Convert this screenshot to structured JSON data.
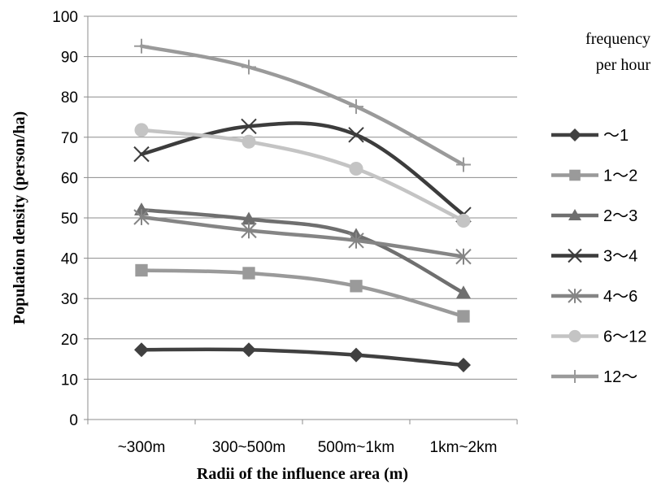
{
  "chart_data": {
    "type": "line",
    "title": "",
    "xlabel": "Radii of the influence area (m)",
    "ylabel": "Population density (person/ha)",
    "ylim": [
      0,
      100
    ],
    "yticks": [
      0,
      10,
      20,
      30,
      40,
      50,
      60,
      70,
      80,
      90,
      100
    ],
    "categories": [
      "~300m",
      "300~500m",
      "500m~1km",
      "1km~2km"
    ],
    "grid": "horizontal",
    "legend": {
      "title_lines": [
        "frequency",
        "per hour"
      ],
      "placement": "right"
    },
    "series": [
      {
        "name": "～1",
        "values": [
          17.3,
          17.3,
          16.0,
          13.5
        ],
        "marker": "diamond",
        "color": "#404040"
      },
      {
        "name": "1～2",
        "values": [
          37.0,
          36.3,
          33.1,
          25.6
        ],
        "marker": "square",
        "color": "#9a9a9a"
      },
      {
        "name": "2～3",
        "values": [
          52.0,
          49.7,
          45.7,
          31.4
        ],
        "marker": "triangle",
        "color": "#6f6f6f"
      },
      {
        "name": "3～4",
        "values": [
          65.8,
          72.7,
          70.6,
          50.8
        ],
        "marker": "x",
        "color": "#3c3c3c"
      },
      {
        "name": "4～6",
        "values": [
          50.2,
          46.9,
          44.4,
          40.4
        ],
        "marker": "asterisk",
        "color": "#858585"
      },
      {
        "name": "6～12",
        "values": [
          71.8,
          68.9,
          62.2,
          49.3
        ],
        "marker": "circle",
        "color": "#c4c4c4"
      },
      {
        "name": "12～",
        "values": [
          92.6,
          87.4,
          77.6,
          63.2
        ],
        "marker": "plus",
        "color": "#9a9a9a"
      }
    ]
  }
}
